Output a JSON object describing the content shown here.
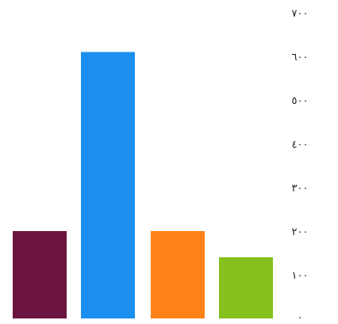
{
  "chart_data": {
    "type": "bar",
    "categories": [
      "",
      "",
      "",
      ""
    ],
    "values": [
      200,
      610,
      200,
      140
    ],
    "colors": [
      "#6b1540",
      "#1a8ff0",
      "#ff8218",
      "#86c01e"
    ],
    "ylim": [
      0,
      700
    ],
    "yticks": [
      0,
      100,
      200,
      300,
      400,
      500,
      600,
      700
    ],
    "ytick_labels": [
      "٠",
      "١٠٠",
      "٢٠٠",
      "٣٠٠",
      "٤٠٠",
      "٥٠٠",
      "٦٠٠",
      "٧٠٠"
    ],
    "axis_position": "right",
    "grid": false,
    "legend": "none"
  }
}
